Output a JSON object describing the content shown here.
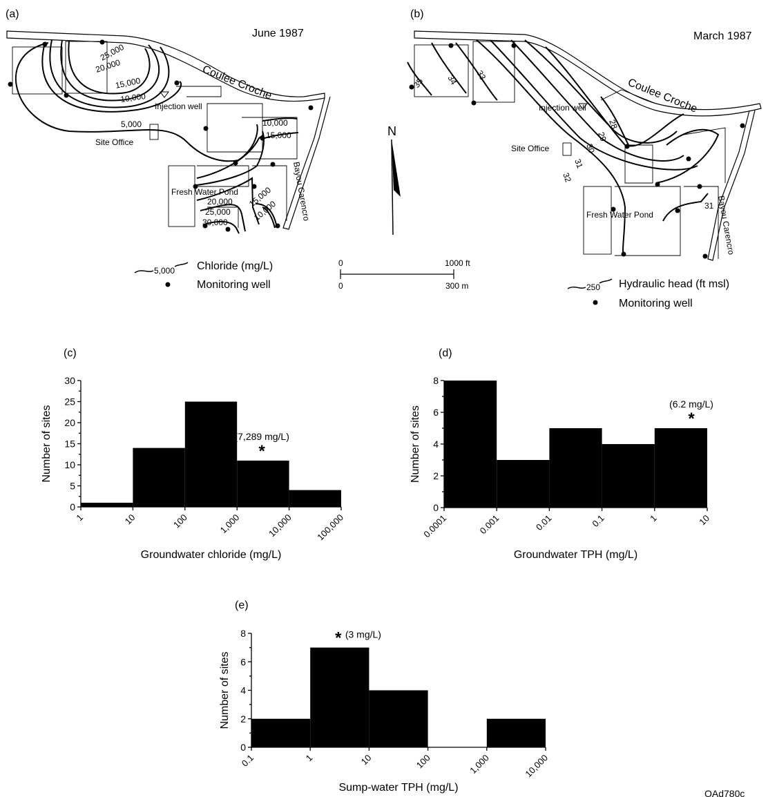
{
  "page_id": "OAd780c",
  "map_a": {
    "panel": "(a)",
    "date": "June 1987",
    "creek": "Coulee Croche",
    "bayou": "Bayou Carencro",
    "injection_well": "Injection well",
    "site_office": "Site Office",
    "pond": "Fresh Water Pond",
    "contour_labels": [
      "25,000",
      "20,000",
      "15,000",
      "10,000",
      "5,000",
      "10,000",
      "15,000",
      "20,000",
      "25,000",
      "30,000",
      "15,000",
      "10,000"
    ],
    "legend_line": "Chloride (mg/L)",
    "legend_line_sample": "5,000",
    "legend_well": "Monitoring well"
  },
  "scale": {
    "north": "N",
    "ft_start": "0",
    "ft_end": "1000 ft",
    "m_start": "0",
    "m_end": "300 m"
  },
  "map_b": {
    "panel": "(b)",
    "date": "March 1987",
    "creek": "Coulee Croche",
    "bayou": "Bayou Carencro",
    "injection_well": "Injection well",
    "site_office": "Site Office",
    "pond": "Fresh Water Pond",
    "contour_labels": [
      "35",
      "34",
      "33",
      "28",
      "29",
      "30",
      "31",
      "32",
      "31"
    ],
    "legend_line": "Hydraulic head (ft msl)",
    "legend_line_sample": "250",
    "legend_well": "Monitoring well"
  },
  "chart_data": [
    {
      "panel": "(c)",
      "type": "bar",
      "xlabel": "Groundwater chloride (mg/L)",
      "ylabel": "Number of sites",
      "x_scale": "log",
      "bin_edges": [
        1,
        10,
        100,
        1000,
        10000,
        100000
      ],
      "x_tick_labels": [
        "1",
        "10",
        "100",
        "1,000",
        "10,000",
        "100,000"
      ],
      "values": [
        1,
        14,
        25,
        11,
        4
      ],
      "ylim": [
        0,
        30
      ],
      "y_ticks": [
        0,
        5,
        10,
        15,
        20,
        25,
        30
      ],
      "annotation": {
        "text": "(7,289 mg/L)",
        "marker": "*",
        "x": 3000
      }
    },
    {
      "panel": "(d)",
      "type": "bar",
      "xlabel": "Groundwater TPH (mg/L)",
      "ylabel": "Number of sites",
      "x_scale": "log",
      "bin_edges": [
        0.0001,
        0.001,
        0.01,
        0.1,
        1,
        10
      ],
      "x_tick_labels": [
        "0.0001",
        "0.001",
        "0.01",
        "0.1",
        "1",
        "10"
      ],
      "values": [
        8,
        3,
        5,
        4,
        5
      ],
      "ylim": [
        0,
        8
      ],
      "y_ticks": [
        0,
        2,
        4,
        6,
        8
      ],
      "annotation": {
        "text": "(6.2 mg/L)",
        "marker": "*",
        "x": 5
      }
    },
    {
      "panel": "(e)",
      "type": "bar",
      "xlabel": "Sump-water TPH (mg/L)",
      "ylabel": "Number of sites",
      "x_scale": "log",
      "bin_edges": [
        0.1,
        1,
        10,
        100,
        1000,
        10000
      ],
      "x_tick_labels": [
        "0.1",
        "1",
        "10",
        "100",
        "1,000",
        "10,000"
      ],
      "values": [
        2,
        7,
        4,
        0,
        2
      ],
      "ylim": [
        0,
        8
      ],
      "y_ticks": [
        0,
        2,
        4,
        6,
        8
      ],
      "annotation": {
        "text": "(3 mg/L)",
        "marker": "*",
        "x": 3
      }
    }
  ]
}
